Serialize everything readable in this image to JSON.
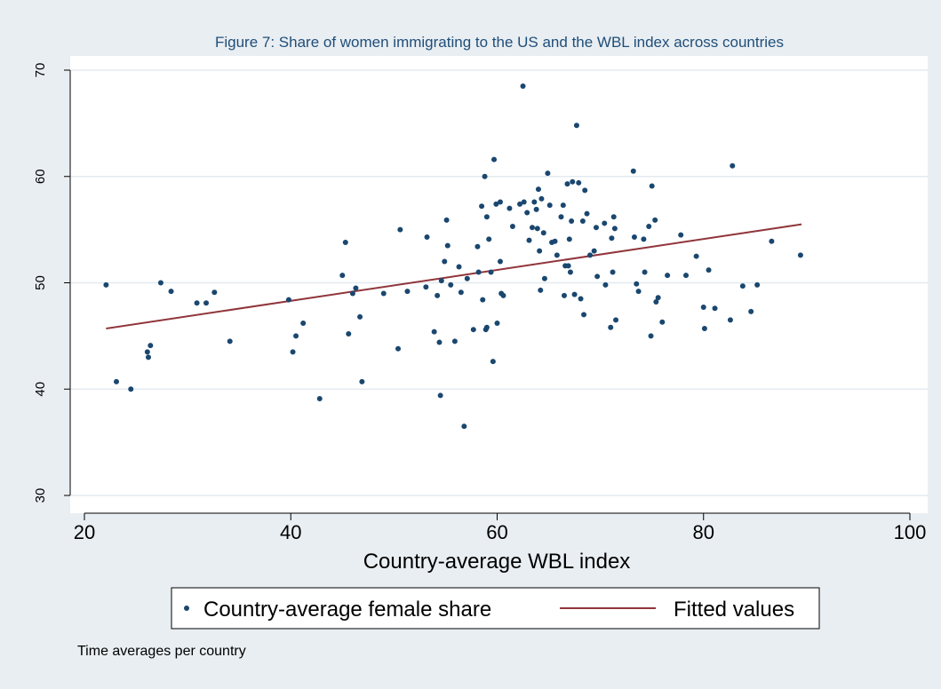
{
  "chart_data": {
    "type": "scatter",
    "title": "Figure 7: Share of women immigrating to the US  and the WBL index across countries",
    "xlabel": "Country-average WBL index",
    "ylabel": "",
    "xlim": [
      20,
      100
    ],
    "ylim": [
      30,
      70
    ],
    "xticks": [
      20,
      40,
      60,
      80,
      100
    ],
    "yticks": [
      30,
      40,
      50,
      60,
      70
    ],
    "grid": true,
    "legend_position": "bottom",
    "note": "Time averages per country",
    "colors": {
      "background": "#e9eef2",
      "plot": "#ffffff",
      "grid": "#e4eaf0",
      "points": "#1a476f",
      "fit": "#90353b"
    },
    "series": [
      {
        "name": "Country-average female share",
        "kind": "scatter",
        "points": [
          [
            22.1,
            49.8
          ],
          [
            23.1,
            40.7
          ],
          [
            24.5,
            40.0
          ],
          [
            26.1,
            43.5
          ],
          [
            26.2,
            43.0
          ],
          [
            26.4,
            44.1
          ],
          [
            27.4,
            50.0
          ],
          [
            28.4,
            49.2
          ],
          [
            30.9,
            48.1
          ],
          [
            31.8,
            48.1
          ],
          [
            32.6,
            49.1
          ],
          [
            34.1,
            44.5
          ],
          [
            39.8,
            48.4
          ],
          [
            40.2,
            43.5
          ],
          [
            40.5,
            45.0
          ],
          [
            41.2,
            46.2
          ],
          [
            42.8,
            39.1
          ],
          [
            45.0,
            50.7
          ],
          [
            45.3,
            53.8
          ],
          [
            45.6,
            45.2
          ],
          [
            46.0,
            49.0
          ],
          [
            46.3,
            49.5
          ],
          [
            46.7,
            46.8
          ],
          [
            46.9,
            40.7
          ],
          [
            49.0,
            49.0
          ],
          [
            50.4,
            43.8
          ],
          [
            50.6,
            55.0
          ],
          [
            51.3,
            49.2
          ],
          [
            53.1,
            49.6
          ],
          [
            53.2,
            54.3
          ],
          [
            53.9,
            45.4
          ],
          [
            54.2,
            48.8
          ],
          [
            54.4,
            44.4
          ],
          [
            54.5,
            39.4
          ],
          [
            54.6,
            50.2
          ],
          [
            54.9,
            52.0
          ],
          [
            55.1,
            55.9
          ],
          [
            55.2,
            53.5
          ],
          [
            55.5,
            49.8
          ],
          [
            55.9,
            44.5
          ],
          [
            56.3,
            51.5
          ],
          [
            56.5,
            49.1
          ],
          [
            56.8,
            36.5
          ],
          [
            57.1,
            50.4
          ],
          [
            57.7,
            45.6
          ],
          [
            58.1,
            53.4
          ],
          [
            58.2,
            51.0
          ],
          [
            58.5,
            57.2
          ],
          [
            58.6,
            48.4
          ],
          [
            58.8,
            60.0
          ],
          [
            58.9,
            45.6
          ],
          [
            59.0,
            56.2
          ],
          [
            59.0,
            45.8
          ],
          [
            59.2,
            54.1
          ],
          [
            59.4,
            51.0
          ],
          [
            59.6,
            42.6
          ],
          [
            59.7,
            61.6
          ],
          [
            59.9,
            57.4
          ],
          [
            60.0,
            46.2
          ],
          [
            60.3,
            57.6
          ],
          [
            60.3,
            52.0
          ],
          [
            60.4,
            49.0
          ],
          [
            60.6,
            48.8
          ],
          [
            61.2,
            57.0
          ],
          [
            61.5,
            55.3
          ],
          [
            62.2,
            57.4
          ],
          [
            62.5,
            68.5
          ],
          [
            62.6,
            57.6
          ],
          [
            62.9,
            56.6
          ],
          [
            63.1,
            54.0
          ],
          [
            63.4,
            55.2
          ],
          [
            63.6,
            57.6
          ],
          [
            63.8,
            56.9
          ],
          [
            63.9,
            55.1
          ],
          [
            64.0,
            58.8
          ],
          [
            64.1,
            53.0
          ],
          [
            64.2,
            49.3
          ],
          [
            64.3,
            57.9
          ],
          [
            64.5,
            54.7
          ],
          [
            64.6,
            50.4
          ],
          [
            64.9,
            60.3
          ],
          [
            65.1,
            57.3
          ],
          [
            65.3,
            53.8
          ],
          [
            65.6,
            53.9
          ],
          [
            65.8,
            52.6
          ],
          [
            66.2,
            56.2
          ],
          [
            66.4,
            57.3
          ],
          [
            66.5,
            48.8
          ],
          [
            66.6,
            51.6
          ],
          [
            66.8,
            59.3
          ],
          [
            66.9,
            51.6
          ],
          [
            67.0,
            54.1
          ],
          [
            67.1,
            51.0
          ],
          [
            67.2,
            55.8
          ],
          [
            67.3,
            59.5
          ],
          [
            67.5,
            48.9
          ],
          [
            67.7,
            64.8
          ],
          [
            67.9,
            59.4
          ],
          [
            68.1,
            48.5
          ],
          [
            68.3,
            55.8
          ],
          [
            68.4,
            47.0
          ],
          [
            68.5,
            58.7
          ],
          [
            68.7,
            56.5
          ],
          [
            69.0,
            52.6
          ],
          [
            69.4,
            53.0
          ],
          [
            69.6,
            55.2
          ],
          [
            69.7,
            50.6
          ],
          [
            70.4,
            55.6
          ],
          [
            70.5,
            49.8
          ],
          [
            71.0,
            45.8
          ],
          [
            71.1,
            54.2
          ],
          [
            71.2,
            51.0
          ],
          [
            71.3,
            56.2
          ],
          [
            71.4,
            55.1
          ],
          [
            71.5,
            46.5
          ],
          [
            73.2,
            60.5
          ],
          [
            73.3,
            54.3
          ],
          [
            73.5,
            49.9
          ],
          [
            73.7,
            49.2
          ],
          [
            74.2,
            54.1
          ],
          [
            74.3,
            51.0
          ],
          [
            74.7,
            55.3
          ],
          [
            74.9,
            45.0
          ],
          [
            75.0,
            59.1
          ],
          [
            75.3,
            55.9
          ],
          [
            75.4,
            48.2
          ],
          [
            75.6,
            48.6
          ],
          [
            76.0,
            46.3
          ],
          [
            76.5,
            50.7
          ],
          [
            77.8,
            54.5
          ],
          [
            78.3,
            50.7
          ],
          [
            79.3,
            52.5
          ],
          [
            80.0,
            47.7
          ],
          [
            80.1,
            45.7
          ],
          [
            80.5,
            51.2
          ],
          [
            81.1,
            47.6
          ],
          [
            82.6,
            46.5
          ],
          [
            82.8,
            61.0
          ],
          [
            83.8,
            49.7
          ],
          [
            84.6,
            47.3
          ],
          [
            85.2,
            49.8
          ],
          [
            86.6,
            53.9
          ],
          [
            89.4,
            52.6
          ]
        ]
      },
      {
        "name": "Fitted values",
        "kind": "line",
        "x": [
          22.1,
          89.5
        ],
        "y": [
          45.7,
          55.5
        ]
      }
    ]
  }
}
